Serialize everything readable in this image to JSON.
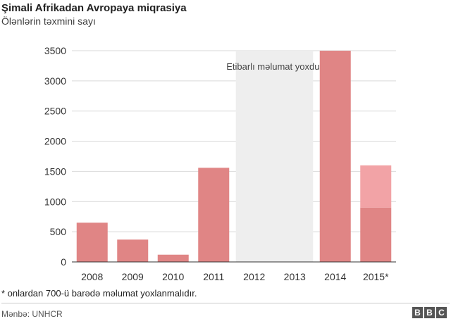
{
  "header": {
    "title": "Şimali Afrikadan Avropaya miqrasiya",
    "subtitle": "Ölənlərin təxmini sayı"
  },
  "footer": {
    "footnote": "* onlardan 700-ü barədə məlumat yoxlanmalıdır.",
    "source": "Mənbə: UNHCR",
    "logo_letters": [
      "B",
      "B",
      "C"
    ]
  },
  "colors": {
    "bar": "#e08585",
    "bar_light": "#f2a3a6",
    "no_data_band": "#eeeeee",
    "gridline": "#d9d9d9",
    "axis": "#333333",
    "logo": "#555555"
  },
  "chart_data": {
    "type": "bar",
    "title": "Şimali Afrikadan Avropaya miqrasiya",
    "subtitle": "Ölənlərin təxmini sayı",
    "categories": [
      "2008",
      "2009",
      "2010",
      "2011",
      "2012",
      "2013",
      "2014",
      "2015*"
    ],
    "series": [
      {
        "values": [
          650,
          370,
          120,
          1560,
          null,
          null,
          3500,
          900
        ]
      },
      {
        "values": [
          null,
          null,
          null,
          null,
          null,
          null,
          null,
          700
        ]
      }
    ],
    "stacked": true,
    "ylim": [
      0,
      3500
    ],
    "yticks": [
      0,
      500,
      1000,
      1500,
      2000,
      2500,
      3000,
      3500
    ],
    "grid": true,
    "no_data": {
      "categories": [
        "2012",
        "2013"
      ],
      "label": "Etibarlı məlumat yoxdur"
    },
    "xlabel": "",
    "ylabel": ""
  }
}
